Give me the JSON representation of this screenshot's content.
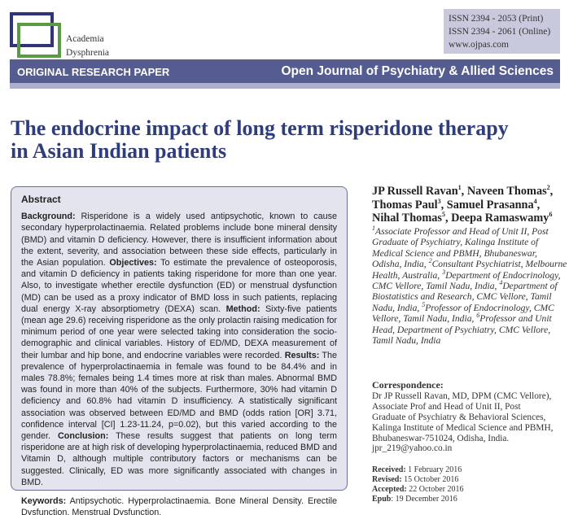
{
  "header": {
    "logo_text": [
      "Academia",
      "Dysphrenia"
    ],
    "issn": [
      "ISSN 2394 - 2053 (Print)",
      "ISSN 2394 - 2061 (Online)",
      "www.ojpas.com"
    ],
    "band_left": "ORIGINAL RESEARCH PAPER",
    "band_right": "Open Journal of Psychiatry & Allied Sciences",
    "colors": {
      "band": "#555c8f",
      "title": "#2f3d7c",
      "logo_blue": "#2f3578",
      "logo_green": "#5a9a44",
      "abstract_bg": "#e4e4ee"
    }
  },
  "title": [
    "The endocrine impact of long term risperidone therapy",
    "in Asian Indian patients"
  ],
  "abstract": {
    "heading": "Abstract",
    "main": [
      {
        "label": "Background:",
        "text": " Risperidone is a widely used antipsychotic, known to cause secondary hyperprolactinaemia. Related problems include bone mineral density (BMD) and vitamin D deficiency. However, there is insufficient information about the extent, severity, and association between these side effects, particularly in the Asian population. "
      },
      {
        "label": "Objectives:",
        "text": " To estimate the prevalence of osteoporosis, and vitamin D deficiency in patients taking risperidone for more than one year. Also, to investigate whether erectile dysfunction (ED) or menstrual dysfunction (MD) can be used as a proxy indicator of BMD loss in such patients, replacing dual energy X-ray absorptiometry (DEXA) scan. "
      },
      {
        "label": "Method:",
        "text": " Sixty-five patients (mean age 29.6) receiving risperidone as the only prolactin raising medication for minimum period of one year were selected taking into consideration the socio-demographic and clinical variables. History of ED/MD, DEXA measurement of their lumbar and hip bone, and endocrine variables were recorded. "
      },
      {
        "label": "Results:",
        "text": " The prevalence of hyperprolactinaemia in female was found to be 84.4% and in males 78.8%; females being 1.4 times more at risk than males. Abnormal BMD was found in more than 40% of the subjects. Furthermore, 30% had vitamin D deficiency and 60.8% had vitamin D insufficiency. A statistically significant association was observed between ED/MD and BMD (odds ration [OR] 3.71, confidence interval [CI] 1.23-11.24, p=0.02), but this varied according to the gender. "
      },
      {
        "label": "Conclusion:",
        "text": " These results suggest that patients on long term risperidone are at high risk of developing hyperprolactinaemia, reduced BMD and Vitamin D, although multiple contributory factors or mechanisms can be suggested. Clinically, ED was more significantly associated with changes in BMD."
      }
    ],
    "keywords_label": "Keywords:",
    "keywords": " Antipsychotic. Hyperprolactinaemia. Bone Mineral Density. Erectile Dysfunction. Menstrual Dysfunction."
  },
  "authors": [
    {
      "name": "JP Russell Ravan",
      "sup": "1",
      "sep": ", "
    },
    {
      "name": "Naveen Thomas",
      "sup": "2",
      "sep": ", "
    },
    {
      "name": "Thomas Paul",
      "sup": "3",
      "sep": ", "
    },
    {
      "name": "Samuel Prasanna",
      "sup": "4",
      "sep": ", "
    },
    {
      "name": "Nihal Thomas",
      "sup": "5",
      "sep": ", "
    },
    {
      "name": "Deepa Ramaswamy",
      "sup": "6",
      "sep": ""
    }
  ],
  "affiliations": [
    {
      "sup": "1",
      "text": "Associate Professor and Head of Unit II, Post Graduate of Psychiatry, Kalinga Institute of Medical Science and PBMH, Bhubaneswar, Odisha, India, "
    },
    {
      "sup": "2",
      "text": "Consultant Psychiatrist, Melbourne Health, Australia, "
    },
    {
      "sup": "3",
      "text": "Department of Endocrinology, CMC Vellore, Tamil Nadu, India, "
    },
    {
      "sup": "4",
      "text": "Department of Biostatistics and Research, CMC Vellore, Tamil Nadu, India, "
    },
    {
      "sup": "5",
      "text": "Professor of Endocrinology, CMC Vellore, Tamil Nadu, India, "
    },
    {
      "sup": "6",
      "text": "Professor and Unit Head, Department of Psychiatry, CMC Vellore, Tamil Nadu, India"
    }
  ],
  "correspondence": {
    "label": "Correspondence:",
    "lines": [
      "Dr JP Russell Ravan, MD, DPM (CMC Vellore),",
      "Associate Prof and Head of Unit II, Post",
      "Graduate of Psychiatry & Behavioral Sciences,",
      "Kalinga Institute of Medical Science and PBMH,",
      "Bhubaneswar-751024, Odisha, India."
    ],
    "email": "jpr_219@yahoo.co.in"
  },
  "dates": [
    {
      "label": "Received:",
      "value": " 1 February 2016"
    },
    {
      "label": "Revised:",
      "value": " 15 October 2016"
    },
    {
      "label": "Accepted:",
      "value": " 22 October 2016"
    },
    {
      "label": "Epub",
      "value": ": 19 December 2016"
    }
  ]
}
